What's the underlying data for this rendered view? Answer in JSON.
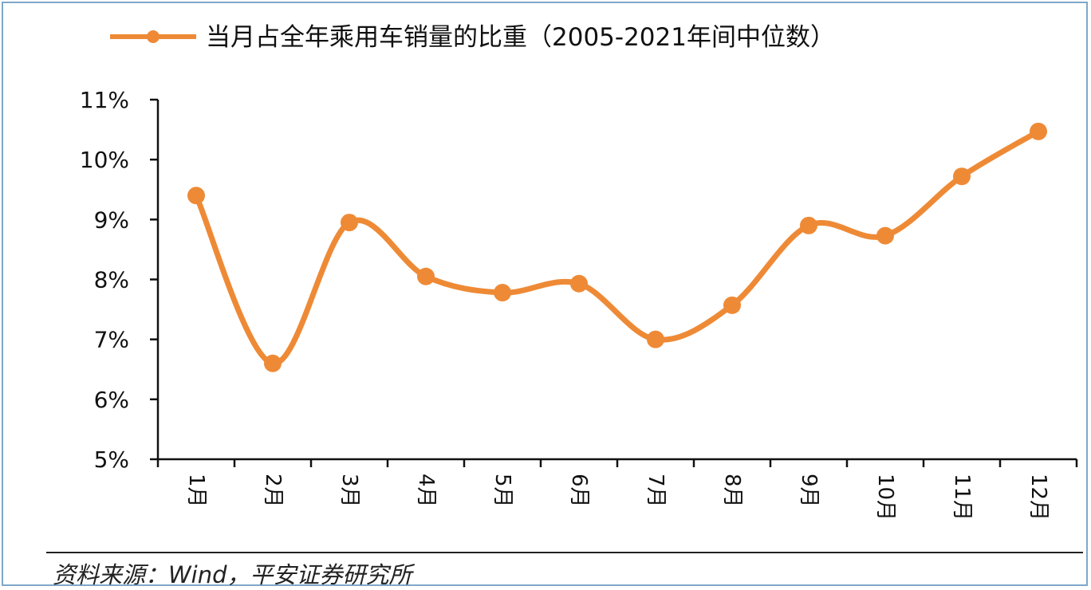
{
  "chart_data": {
    "type": "line",
    "series": [
      {
        "name": "当月占全年乘用车销量的比重（2005-2021年间中位数）",
        "values": [
          9.4,
          6.6,
          8.95,
          8.05,
          7.78,
          7.93,
          7.0,
          7.57,
          8.9,
          8.73,
          9.72,
          10.47
        ]
      }
    ],
    "categories": [
      "1月",
      "2月",
      "3月",
      "4月",
      "5月",
      "6月",
      "7月",
      "8月",
      "9月",
      "10月",
      "11月",
      "12月"
    ],
    "yticks": [
      "5%",
      "6%",
      "7%",
      "8%",
      "9%",
      "10%",
      "11%"
    ],
    "ylim": [
      5,
      11
    ],
    "legend_position": "top",
    "grid": false,
    "colors": {
      "line": "#ee8a36",
      "axis": "#111111"
    }
  },
  "source": "资料来源：Wind，平安证券研究所"
}
